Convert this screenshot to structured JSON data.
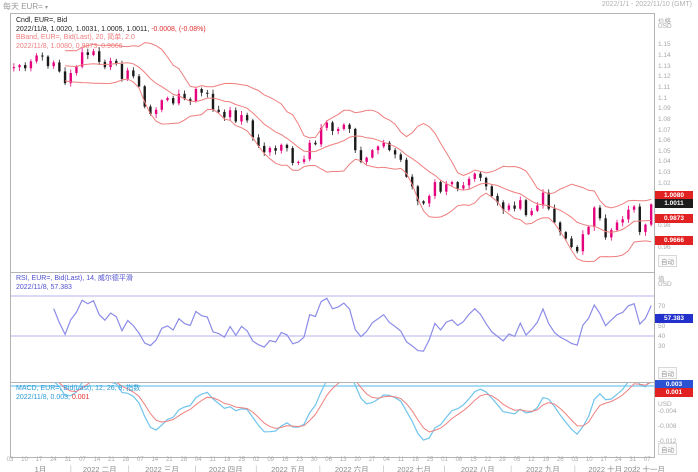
{
  "header": {
    "interval_symbol": "每天 EUR=",
    "date_range": "2022/1/1 - 2022/11/10 (GMT)"
  },
  "colors": {
    "up_candle": "#e5007d",
    "down_candle": "#1a1a1a",
    "bband_line": "#ef7e7e",
    "rsi_line": "#8c8ce8",
    "rsi_level_line": "#b4b4ee",
    "rsi_legend_text": "#5050d0",
    "macd_line": "#70c4ec",
    "macd_signal_line": "#ef8080",
    "macd_zero_line": "#a8dcf4",
    "macd_legend_text": "#2b9ad6",
    "neg_change_red": "#e03030",
    "badge_red": "#e22222",
    "badge_black": "#1c1c1c",
    "badge_blue": "#2230cc",
    "badge_macd_blue": "#2a52d2",
    "axis_text": "#a8a8a8"
  },
  "panes": {
    "main": {
      "axis_title": "价格",
      "axis_unit": "USD",
      "auto_label": "自动",
      "legend1": "Cndl, EUR=, Bid",
      "legend2_black": "2022/11/8, 1.0020, 1.0031, 1.0005, 1.0011,",
      "legend2_red": " -0.0008, (-0.08%)",
      "legend3": "BBand, EUR=, Bid(Last), 20, 简单, 2.0",
      "legend4": "2022/11/8, 1.0080, 0.9873, 0.9666",
      "badges": [
        {
          "text": "1.0080",
          "value": 1.008,
          "bg": "red"
        },
        {
          "text": "1.0011",
          "value": 1.0011,
          "bg": "black"
        },
        {
          "text": "0.9873",
          "value": 0.9873,
          "bg": "red"
        },
        {
          "text": "0.9666",
          "value": 0.9666,
          "bg": "red"
        }
      ]
    },
    "rsi": {
      "axis_title": "值",
      "axis_unit": "USD",
      "auto_label": "自动",
      "legend1": "RSI, EUR=, Bid(Last), 14, 威尔德平滑",
      "legend2": "2022/11/8, 57.383",
      "badge": {
        "text": "57.383",
        "value": 57.383,
        "bg": "blue"
      }
    },
    "macd": {
      "axis_unit": "USD",
      "auto_label": "自动",
      "legend1": "MACD, EUR=, Bid(Last), 12, 26, 9, 指数",
      "legend2_date": "2022/11/8, ",
      "legend2_macd": "0.003, ",
      "legend2_signal": "0.001",
      "badges": [
        {
          "text": "0.003",
          "value": 0.003,
          "bg": "macdblue"
        },
        {
          "text": "0.001",
          "value": 0.001,
          "bg": "red"
        }
      ]
    }
  },
  "x_axis": {
    "total_days": 222,
    "day_labels": [
      "03",
      "10",
      "17",
      "24",
      "31",
      "07",
      "14",
      "21",
      "28",
      "07",
      "14",
      "21",
      "28",
      "04",
      "11",
      "18",
      "25",
      "02",
      "09",
      "16",
      "23",
      "30",
      "06",
      "13",
      "20",
      "27",
      "04",
      "11",
      "18",
      "25",
      "01",
      "08",
      "15",
      "22",
      "29",
      "05",
      "12",
      "19",
      "26",
      "03",
      "10",
      "17",
      "24",
      "31",
      "07"
    ],
    "months": [
      {
        "label": "1月",
        "days": 21
      },
      {
        "label": "2022 二月",
        "days": 20
      },
      {
        "label": "2022 三月",
        "days": 23
      },
      {
        "label": "2022 四月",
        "days": 21
      },
      {
        "label": "2022 五月",
        "days": 22
      },
      {
        "label": "2022 六月",
        "days": 22
      },
      {
        "label": "2022 七月",
        "days": 21
      },
      {
        "label": "2022 八月",
        "days": 23
      },
      {
        "label": "2022 九月",
        "days": 22
      },
      {
        "label": "2022 十月",
        "days": 21
      },
      {
        "label": "2022 十一月",
        "days": 6
      }
    ]
  },
  "chart_data": [
    {
      "type": "candlestick",
      "title": "Cndl, EUR=, Bid",
      "symbol": "EUR=",
      "interval": "每天",
      "date_range": "2022/1/1 - 2022/11/10 (GMT)",
      "last_candle": {
        "date": "2022/11/8",
        "open": 1.002,
        "high": 1.0031,
        "low": 1.0005,
        "close": 1.0011,
        "change": -0.0008,
        "change_pct": "-0.08%"
      },
      "overlay": {
        "name": "BBand",
        "period": 20,
        "ma_type": "简单",
        "stdev": 2.0,
        "upper": 1.008,
        "middle": 0.9873,
        "lower": 0.9666
      },
      "ylabel": "价格 USD",
      "ylim": [
        0.9375,
        1.18
      ],
      "yticks": [
        "1.15",
        "1.14",
        "1.13",
        "1.12",
        "1.11",
        "1.1",
        "1.09",
        "1.08",
        "1.07",
        "1.06",
        "1.05",
        "1.04",
        "1.03",
        "1.02",
        "0.98",
        "0.96"
      ],
      "sample_step_days": 2,
      "wick": 0.004,
      "bb_window_samples": 10,
      "closes": [
        1.13,
        1.132,
        1.129,
        1.1355,
        1.141,
        1.14,
        1.131,
        1.1345,
        1.126,
        1.115,
        1.1245,
        1.1305,
        1.144,
        1.1415,
        1.145,
        1.135,
        1.13,
        1.136,
        1.133,
        1.119,
        1.127,
        1.1215,
        1.112,
        1.093,
        1.086,
        1.09,
        1.099,
        1.101,
        1.096,
        1.105,
        1.1,
        1.098,
        1.1095,
        1.106,
        1.105,
        1.09,
        1.088,
        1.083,
        1.0895,
        1.079,
        1.085,
        1.08,
        1.064,
        1.056,
        1.05,
        1.054,
        1.0515,
        1.057,
        1.054,
        1.04,
        1.041,
        1.0435,
        1.059,
        1.0575,
        1.073,
        1.078,
        1.07,
        1.072,
        1.076,
        1.072,
        1.052,
        1.041,
        1.045,
        1.052,
        1.0555,
        1.059,
        1.052,
        1.048,
        1.043,
        1.027,
        1.018,
        1.004,
        1.002,
        1.009,
        1.022,
        1.013,
        1.02,
        1.022,
        1.016,
        1.019,
        1.025,
        1.03,
        1.026,
        1.018,
        1.009,
        1.003,
        0.996,
        1.0,
        0.997,
        1.005,
        0.991,
        0.995,
        1.0,
        1.012,
        0.997,
        0.984,
        0.975,
        0.969,
        0.961,
        0.957,
        0.973,
        0.98,
        0.998,
        0.988,
        0.97,
        0.977,
        0.984,
        0.987,
        0.996,
        0.999,
        0.975,
        0.982,
        1.0011
      ]
    },
    {
      "type": "line",
      "title": "RSI, EUR=, Bid(Last), 14, 威尔德平滑",
      "name": "RSI",
      "period": 14,
      "smoothing": "威尔德平滑",
      "current": 57.383,
      "levels": [
        70,
        30
      ],
      "ylim": [
        -5,
        105
      ],
      "yticks": [
        "70",
        "60",
        "50",
        "40",
        "30"
      ],
      "computed_period_samples": 7
    },
    {
      "type": "line",
      "title": "MACD, EUR=, Bid(Last), 12, 26, 9, 指数",
      "name": "MACD",
      "params": [
        12,
        26,
        9
      ],
      "ma_type": "指数",
      "current_macd": 0.003,
      "current_signal": 0.001,
      "zero_level": 0.0,
      "ylim": [
        -0.016,
        0.004
      ],
      "yticks": [
        "-0.004",
        "-0.008",
        "-0.012"
      ],
      "computed_params_samples": {
        "fast": 6,
        "slow": 13,
        "signal": 4
      }
    }
  ]
}
